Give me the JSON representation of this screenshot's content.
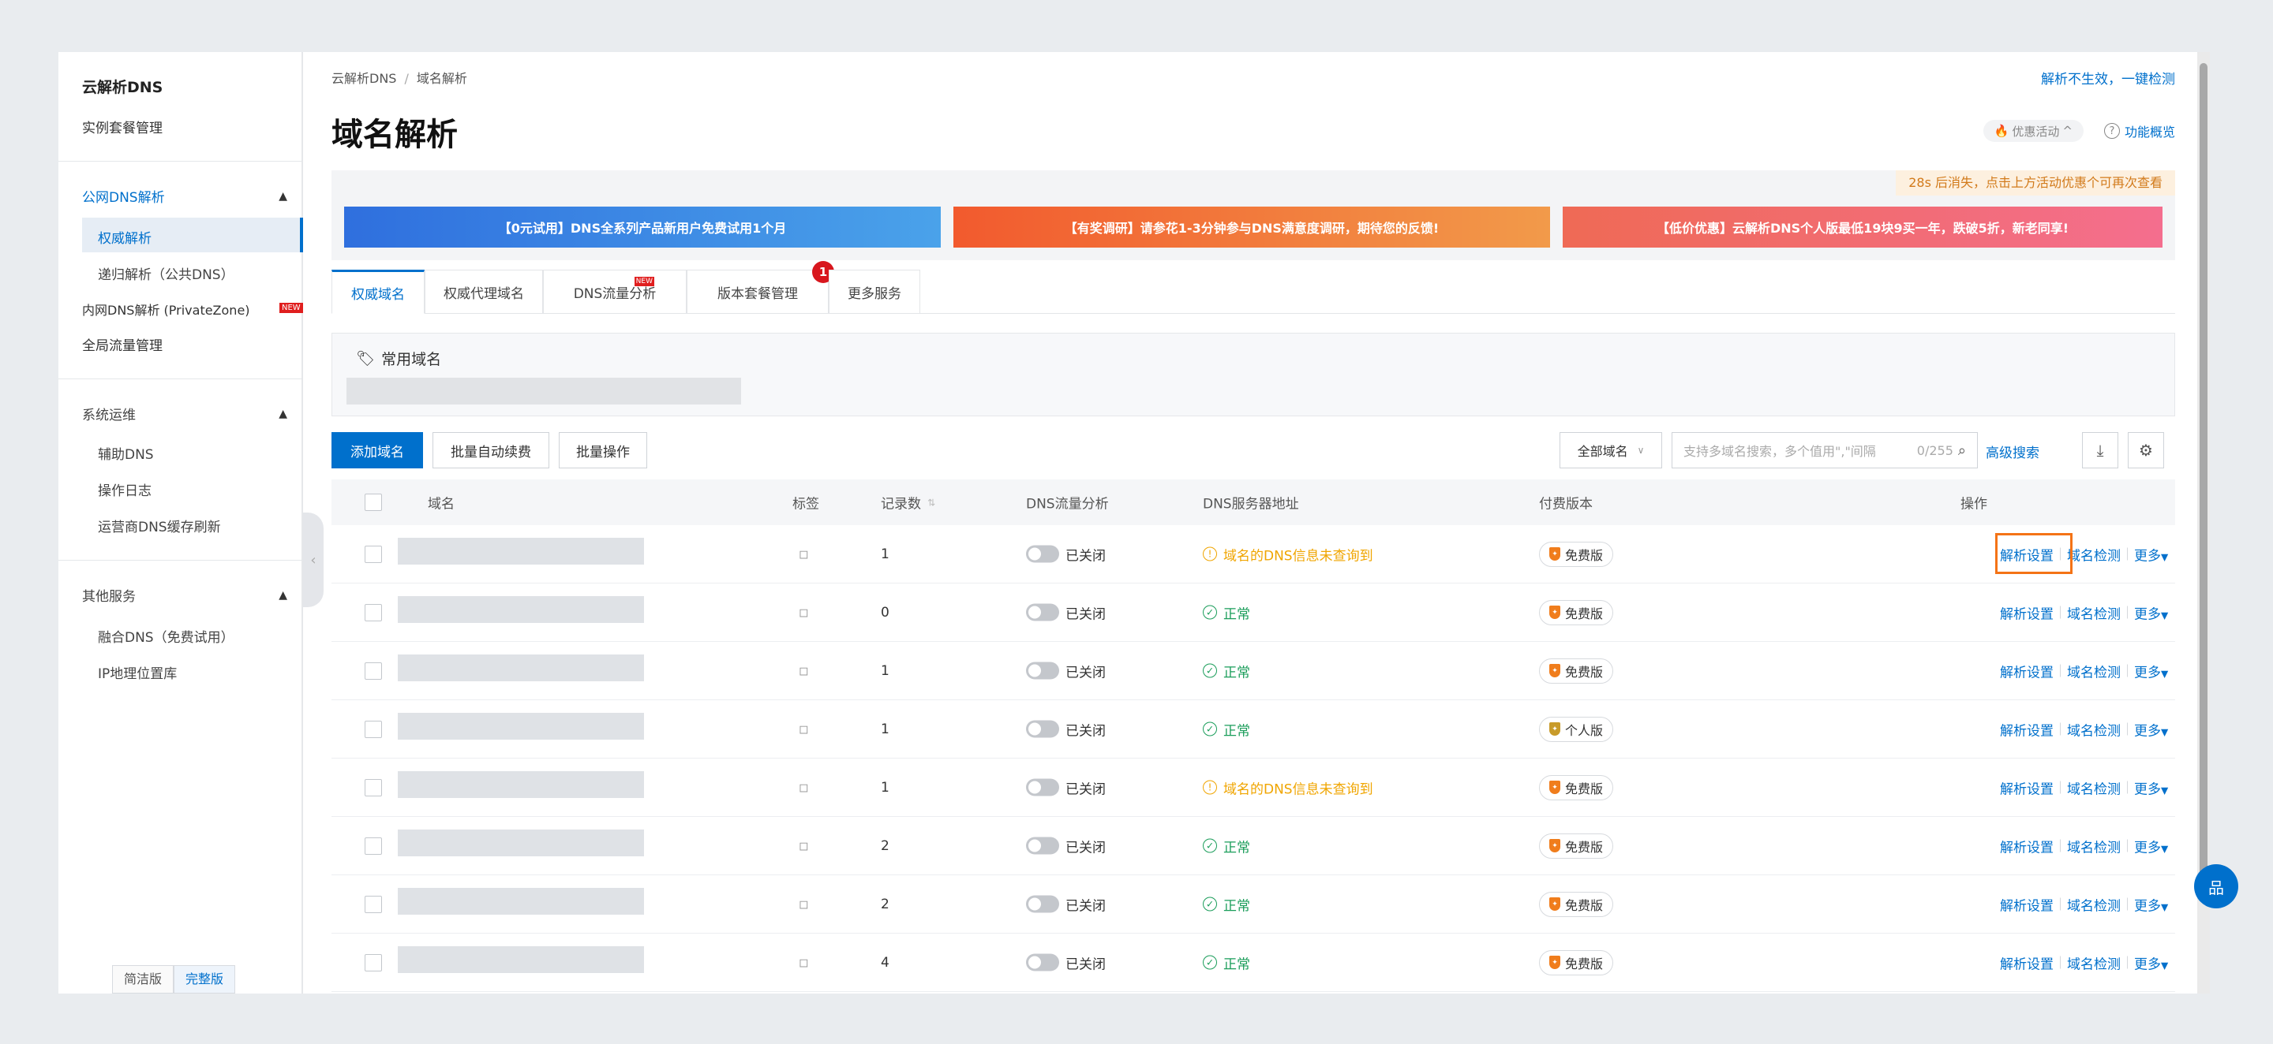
{
  "sidebar": {
    "title": "云解析DNS",
    "instance_mgmt": "实例套餐管理",
    "public_dns": "公网DNS解析",
    "authoritative": "权威解析",
    "recursive": "递归解析（公共DNS）",
    "private_zone": "内网DNS解析 (PrivateZone)",
    "private_zone_badge": "NEW",
    "global_traffic": "全局流量管理",
    "ops": "系统运维",
    "aux_dns": "辅助DNS",
    "op_log": "操作日志",
    "isp_cache": "运营商DNS缓存刷新",
    "other": "其他服务",
    "fusion_dns": "融合DNS（免费试用）",
    "ip_geo": "IP地理位置库",
    "mode_simple": "简洁版",
    "mode_full": "完整版"
  },
  "header": {
    "breadcrumb_root": "云解析DNS",
    "breadcrumb_sep": "/",
    "breadcrumb_current": "域名解析",
    "top_link": "解析不生效，一键检测",
    "title": "域名解析",
    "promo_label": "优惠活动",
    "overview_label": "功能概览"
  },
  "banners": {
    "countdown": "28s 后消失，点击上方活动优惠个可再次查看",
    "b1": "【0元试用】DNS全系列产品新用户免费试用1个月",
    "b2": "【有奖调研】请参花1-3分钟参与DNS满意度调研，期待您的反馈!",
    "b3": "【低价优惠】云解析DNS个人版最低19块9买一年，跌破5折，新老同享!"
  },
  "tabs": [
    {
      "label": "权威域名"
    },
    {
      "label": "权威代理域名"
    },
    {
      "label": "DNS流量分析",
      "badge": "NEW"
    },
    {
      "label": "版本套餐管理",
      "count": "1"
    },
    {
      "label": "更多服务"
    }
  ],
  "favorites": {
    "title": "常用域名"
  },
  "toolbar": {
    "add": "添加域名",
    "batch_renew": "批量自动续费",
    "batch_ops": "批量操作",
    "filter": "全部域名",
    "search_placeholder": "支持多域名搜索，多个值用\",\"间隔",
    "search_count": "0/255",
    "advanced": "高级搜索"
  },
  "table": {
    "headers": {
      "domain": "域名",
      "tag": "标签",
      "records": "记录数",
      "traffic": "DNS流量分析",
      "server": "DNS服务器地址",
      "plan": "付费版本",
      "ops": "操作"
    },
    "rows": [
      {
        "records": "1",
        "traffic": "已关闭",
        "status": "域名的DNS信息未查询到",
        "status_type": "warn",
        "plan": "免费版",
        "plan_type": "free"
      },
      {
        "records": "0",
        "traffic": "已关闭",
        "status": "正常",
        "status_type": "ok",
        "plan": "免费版",
        "plan_type": "free"
      },
      {
        "records": "1",
        "traffic": "已关闭",
        "status": "正常",
        "status_type": "ok",
        "plan": "免费版",
        "plan_type": "free"
      },
      {
        "records": "1",
        "traffic": "已关闭",
        "status": "正常",
        "status_type": "ok",
        "plan": "个人版",
        "plan_type": "personal"
      },
      {
        "records": "1",
        "traffic": "已关闭",
        "status": "域名的DNS信息未查询到",
        "status_type": "warn",
        "plan": "免费版",
        "plan_type": "free"
      },
      {
        "records": "2",
        "traffic": "已关闭",
        "status": "正常",
        "status_type": "ok",
        "plan": "免费版",
        "plan_type": "free"
      },
      {
        "records": "2",
        "traffic": "已关闭",
        "status": "正常",
        "status_type": "ok",
        "plan": "免费版",
        "plan_type": "free"
      },
      {
        "records": "4",
        "traffic": "已关闭",
        "status": "正常",
        "status_type": "ok",
        "plan": "免费版",
        "plan_type": "free"
      }
    ],
    "op_resolve": "解析设置",
    "op_check": "域名检测",
    "op_more": "更多"
  }
}
